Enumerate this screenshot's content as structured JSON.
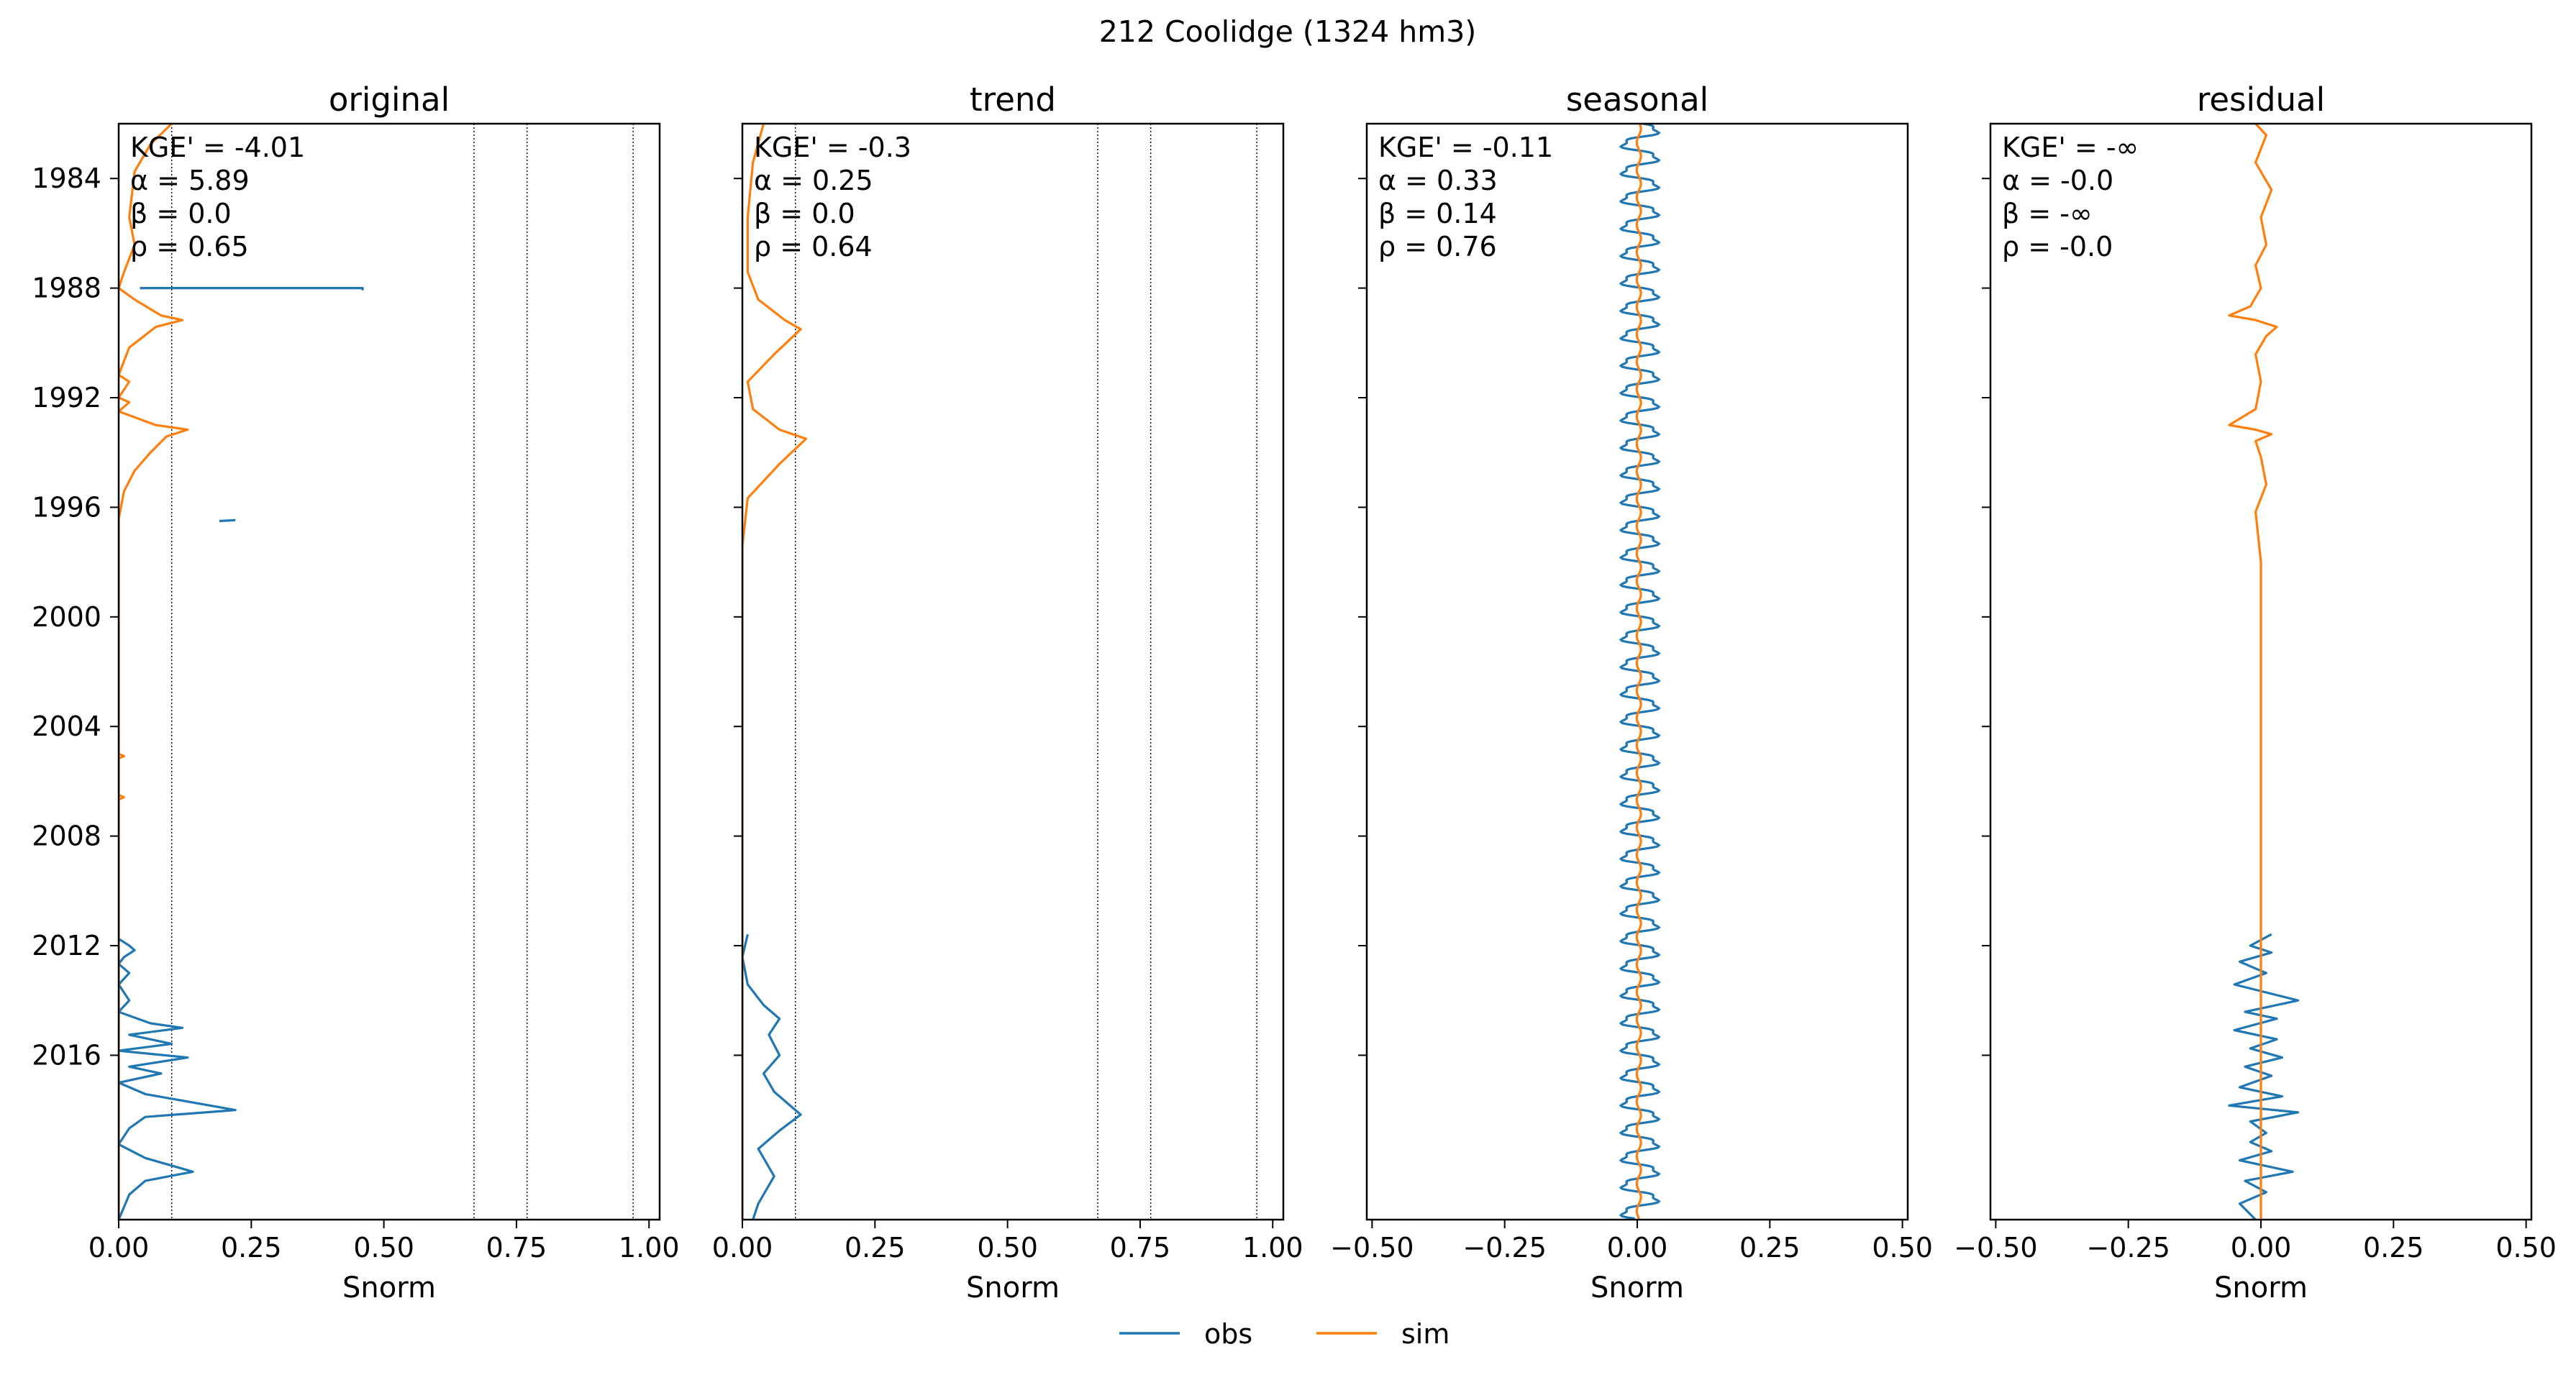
{
  "figure": {
    "suptitle": "212  Coolidge (1324 hm3)",
    "legend": {
      "obs": "obs",
      "sim": "sim"
    },
    "colors": {
      "obs": "#1f77b4",
      "sim": "#ff7f0e",
      "vline": "#000000"
    }
  },
  "chart_data": [
    {
      "type": "line",
      "title": "original",
      "xlabel": "Snorm",
      "ylabel": "",
      "xlim": [
        0,
        1.02
      ],
      "ylim": [
        "2021-12-31",
        "1982-01-01"
      ],
      "xticks": [
        "0.00",
        "0.25",
        "0.50",
        "0.75",
        "1.00"
      ],
      "yticks": [
        "1984",
        "1988",
        "1992",
        "1996",
        "2000",
        "2004",
        "2008",
        "2012",
        "2016"
      ],
      "vlines": [
        0.1,
        0.67,
        0.77,
        0.97
      ],
      "stats": [
        "KGE' = -4.01",
        "α = 5.89",
        "β = 0.0",
        "ρ = 0.65"
      ],
      "series": [
        {
          "name": "obs",
          "segments": [
            [
              [
                0.04,
                "1988-01-01"
              ],
              [
                0.3,
                "1988-01-01"
              ],
              [
                0.46,
                "1988-01-01"
              ],
              [
                0.46,
                "1988-02-01"
              ]
            ],
            [
              [
                0.19,
                "1996-07-01"
              ],
              [
                0.22,
                "1996-06-20"
              ]
            ],
            [
              [
                0.0,
                "2011-10-01"
              ],
              [
                0.02,
                "2012-01-01"
              ],
              [
                0.03,
                "2012-03-01"
              ],
              [
                0.01,
                "2012-06-01"
              ],
              [
                0.0,
                "2012-09-01"
              ],
              [
                0.02,
                "2013-01-01"
              ],
              [
                0.0,
                "2013-06-01"
              ],
              [
                0.02,
                "2014-01-01"
              ],
              [
                0.0,
                "2014-06-01"
              ],
              [
                0.06,
                "2014-11-01"
              ],
              [
                0.12,
                "2015-01-01"
              ],
              [
                0.02,
                "2015-04-01"
              ],
              [
                0.1,
                "2015-08-01"
              ],
              [
                0.0,
                "2015-11-01"
              ],
              [
                0.13,
                "2016-02-01"
              ],
              [
                0.02,
                "2016-06-01"
              ],
              [
                0.08,
                "2016-09-01"
              ],
              [
                0.0,
                "2017-01-01"
              ],
              [
                0.05,
                "2017-06-01"
              ],
              [
                0.22,
                "2018-01-01"
              ],
              [
                0.05,
                "2018-04-01"
              ],
              [
                0.02,
                "2018-09-01"
              ],
              [
                0.0,
                "2019-04-01"
              ],
              [
                0.05,
                "2019-10-01"
              ],
              [
                0.14,
                "2020-04-01"
              ],
              [
                0.05,
                "2020-08-01"
              ],
              [
                0.02,
                "2021-02-01"
              ],
              [
                0.0,
                "2021-12-31"
              ]
            ]
          ]
        },
        {
          "name": "sim",
          "segments": [
            [
              [
                0.1,
                "1982-01-01"
              ],
              [
                0.06,
                "1982-10-01"
              ],
              [
                0.03,
                "1983-10-01"
              ],
              [
                0.02,
                "1985-06-01"
              ],
              [
                0.03,
                "1986-06-01"
              ],
              [
                0.01,
                "1987-06-01"
              ],
              [
                0.0,
                "1988-01-01"
              ],
              [
                0.03,
                "1988-06-01"
              ],
              [
                0.08,
                "1989-01-01"
              ],
              [
                0.12,
                "1989-03-01"
              ],
              [
                0.07,
                "1989-06-01"
              ],
              [
                0.02,
                "1990-03-01"
              ],
              [
                0.0,
                "1991-03-01"
              ],
              [
                0.02,
                "1991-06-01"
              ],
              [
                0.0,
                "1992-01-01"
              ],
              [
                0.02,
                "1992-03-01"
              ],
              [
                0.0,
                "1992-07-01"
              ],
              [
                0.07,
                "1993-01-01"
              ],
              [
                0.13,
                "1993-03-01"
              ],
              [
                0.09,
                "1993-06-01"
              ],
              [
                0.06,
                "1994-01-01"
              ],
              [
                0.03,
                "1994-09-01"
              ],
              [
                0.01,
                "1995-06-01"
              ],
              [
                0.0,
                "1996-06-01"
              ],
              [
                0.0,
                "2005-01-01"
              ],
              [
                0.01,
                "2005-02-01"
              ],
              [
                0.0,
                "2005-03-01"
              ],
              [
                0.0,
                "2006-07-01"
              ],
              [
                0.01,
                "2006-08-01"
              ],
              [
                0.0,
                "2006-09-01"
              ],
              [
                0.0,
                "2021-12-31"
              ]
            ]
          ]
        }
      ]
    },
    {
      "type": "line",
      "title": "trend",
      "xlabel": "Snorm",
      "ylabel": "",
      "xlim": [
        0,
        1.02
      ],
      "ylim": [
        "2021-12-31",
        "1982-01-01"
      ],
      "xticks": [
        "0.00",
        "0.25",
        "0.50",
        "0.75",
        "1.00"
      ],
      "yticks": [
        "1984",
        "1988",
        "1992",
        "1996",
        "2000",
        "2004",
        "2008",
        "2012",
        "2016"
      ],
      "vlines": [
        0.1,
        0.67,
        0.77,
        0.97
      ],
      "stats": [
        "KGE' = -0.3",
        "α = 0.25",
        "β = 0.0",
        "ρ = 0.64"
      ],
      "series": [
        {
          "name": "obs",
          "segments": [
            [
              [
                0.01,
                "2011-08-01"
              ],
              [
                0.0,
                "2012-06-01"
              ],
              [
                0.01,
                "2013-06-01"
              ],
              [
                0.04,
                "2014-03-01"
              ],
              [
                0.07,
                "2014-09-01"
              ],
              [
                0.05,
                "2015-04-01"
              ],
              [
                0.07,
                "2016-01-01"
              ],
              [
                0.04,
                "2016-09-01"
              ],
              [
                0.06,
                "2017-05-01"
              ],
              [
                0.11,
                "2018-03-01"
              ],
              [
                0.07,
                "2018-10-01"
              ],
              [
                0.03,
                "2019-06-01"
              ],
              [
                0.06,
                "2020-06-01"
              ],
              [
                0.03,
                "2021-06-01"
              ],
              [
                0.02,
                "2021-12-31"
              ]
            ]
          ]
        },
        {
          "name": "sim",
          "segments": [
            [
              [
                0.04,
                "1982-01-01"
              ],
              [
                0.02,
                "1983-06-01"
              ],
              [
                0.01,
                "1985-06-01"
              ],
              [
                0.01,
                "1987-06-01"
              ],
              [
                0.03,
                "1988-06-01"
              ],
              [
                0.08,
                "1989-03-01"
              ],
              [
                0.11,
                "1989-07-01"
              ],
              [
                0.06,
                "1990-06-01"
              ],
              [
                0.01,
                "1991-06-01"
              ],
              [
                0.02,
                "1992-06-01"
              ],
              [
                0.07,
                "1993-03-01"
              ],
              [
                0.12,
                "1993-07-01"
              ],
              [
                0.07,
                "1994-06-01"
              ],
              [
                0.01,
                "1995-09-01"
              ],
              [
                0.0,
                "1997-06-01"
              ],
              [
                0.0,
                "2021-12-31"
              ]
            ]
          ]
        }
      ]
    },
    {
      "type": "line",
      "title": "seasonal",
      "xlabel": "Snorm",
      "ylabel": "",
      "xlim": [
        -0.51,
        0.51
      ],
      "ylim": [
        "2021-12-31",
        "1982-01-01"
      ],
      "xticks": [
        "−0.50",
        "−0.25",
        "0.00",
        "0.25",
        "0.50"
      ],
      "yticks": [
        "1984",
        "1988",
        "1992",
        "1996",
        "2000",
        "2004",
        "2008",
        "2012",
        "2016"
      ],
      "vlines": [],
      "stats": [
        "KGE' = -0.11",
        "α = 0.33",
        "β = 0.14",
        "ρ = 0.76"
      ],
      "periodic": {
        "period_years": 1,
        "start": "1982-01-01",
        "end": "2021-12-31",
        "obs_amplitude": 0.035,
        "obs_offset": 0.005,
        "sim_amplitude": 0.004,
        "sim_offset": 0.003
      },
      "series": [
        {
          "name": "obs",
          "segments": []
        },
        {
          "name": "sim",
          "segments": []
        }
      ]
    },
    {
      "type": "line",
      "title": "residual",
      "xlabel": "Snorm",
      "ylabel": "",
      "xlim": [
        -0.51,
        0.51
      ],
      "ylim": [
        "2021-12-31",
        "1982-01-01"
      ],
      "xticks": [
        "−0.50",
        "−0.25",
        "0.00",
        "0.25",
        "0.50"
      ],
      "yticks": [
        "1984",
        "1988",
        "1992",
        "1996",
        "2000",
        "2004",
        "2008",
        "2012",
        "2016"
      ],
      "vlines": [],
      "stats": [
        "KGE' = -∞",
        "α = -0.0",
        "β = -∞",
        "ρ = -0.0"
      ],
      "series": [
        {
          "name": "obs",
          "segments": [
            [
              [
                0.02,
                "2011-08-01"
              ],
              [
                -0.02,
                "2012-01-01"
              ],
              [
                0.02,
                "2012-04-01"
              ],
              [
                -0.04,
                "2012-08-01"
              ],
              [
                0.01,
                "2013-01-01"
              ],
              [
                -0.05,
                "2013-06-01"
              ],
              [
                0.07,
                "2014-01-01"
              ],
              [
                -0.03,
                "2014-06-01"
              ],
              [
                0.03,
                "2014-09-01"
              ],
              [
                -0.05,
                "2015-02-01"
              ],
              [
                0.03,
                "2015-06-01"
              ],
              [
                -0.02,
                "2015-10-01"
              ],
              [
                0.04,
                "2016-02-01"
              ],
              [
                -0.03,
                "2016-06-01"
              ],
              [
                0.02,
                "2016-10-01"
              ],
              [
                -0.04,
                "2017-03-01"
              ],
              [
                0.04,
                "2017-07-01"
              ],
              [
                -0.06,
                "2017-11-01"
              ],
              [
                0.07,
                "2018-02-01"
              ],
              [
                -0.02,
                "2018-06-01"
              ],
              [
                0.01,
                "2018-11-01"
              ],
              [
                -0.02,
                "2019-03-01"
              ],
              [
                0.02,
                "2019-07-01"
              ],
              [
                -0.04,
                "2019-11-01"
              ],
              [
                0.06,
                "2020-04-01"
              ],
              [
                -0.03,
                "2020-08-01"
              ],
              [
                0.01,
                "2021-01-01"
              ],
              [
                -0.04,
                "2021-06-01"
              ],
              [
                -0.01,
                "2021-12-31"
              ]
            ]
          ]
        },
        {
          "name": "sim",
          "segments": [
            [
              [
                -0.01,
                "1982-01-01"
              ],
              [
                0.01,
                "1982-06-01"
              ],
              [
                -0.01,
                "1983-06-01"
              ],
              [
                0.02,
                "1984-06-01"
              ],
              [
                0.0,
                "1985-06-01"
              ],
              [
                0.01,
                "1986-06-01"
              ],
              [
                -0.01,
                "1987-03-01"
              ],
              [
                0.0,
                "1988-01-01"
              ],
              [
                -0.02,
                "1988-09-01"
              ],
              [
                -0.06,
                "1989-01-01"
              ],
              [
                -0.01,
                "1989-03-01"
              ],
              [
                0.03,
                "1989-06-01"
              ],
              [
                0.01,
                "1989-10-01"
              ],
              [
                -0.01,
                "1990-06-01"
              ],
              [
                0.0,
                "1991-06-01"
              ],
              [
                -0.01,
                "1992-06-01"
              ],
              [
                -0.06,
                "1993-01-01"
              ],
              [
                -0.01,
                "1993-03-01"
              ],
              [
                0.02,
                "1993-05-01"
              ],
              [
                -0.01,
                "1993-08-01"
              ],
              [
                0.0,
                "1994-03-01"
              ],
              [
                0.01,
                "1995-03-01"
              ],
              [
                -0.01,
                "1996-03-01"
              ],
              [
                0.0,
                "1998-01-01"
              ],
              [
                0.0,
                "2021-12-31"
              ]
            ]
          ]
        }
      ]
    }
  ]
}
